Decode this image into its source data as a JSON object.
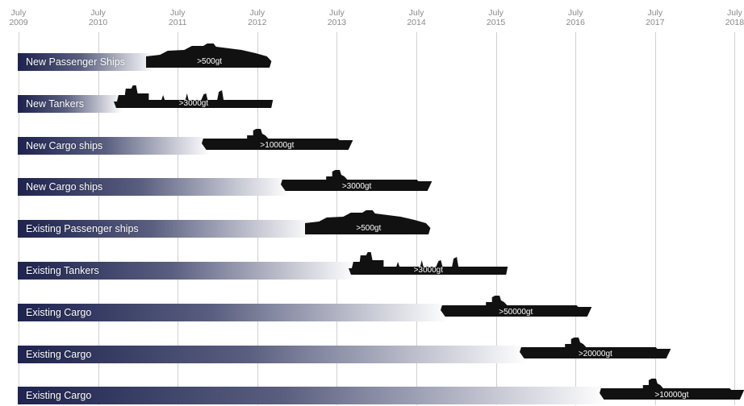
{
  "years": [
    {
      "month": "July",
      "year": "2009"
    },
    {
      "month": "July",
      "year": "2010"
    },
    {
      "month": "July",
      "year": "2011"
    },
    {
      "month": "July",
      "year": "2012"
    },
    {
      "month": "July",
      "year": "2013"
    },
    {
      "month": "July",
      "year": "2014"
    },
    {
      "month": "July",
      "year": "2015"
    },
    {
      "month": "July",
      "year": "2016"
    },
    {
      "month": "July",
      "year": "2017"
    },
    {
      "month": "July",
      "year": "2018"
    }
  ],
  "rows": [
    {
      "label": "New Passenger Ships",
      "ship": "passenger",
      "tonnage": ">500gt",
      "ship_start": 2010.6,
      "ship_end": 2012.2
    },
    {
      "label": "New Tankers",
      "ship": "tanker",
      "tonnage": ">3000gt",
      "ship_start": 2010.2,
      "ship_end": 2012.2
    },
    {
      "label": "New Cargo ships",
      "ship": "cargo",
      "tonnage": ">10000gt",
      "ship_start": 2011.3,
      "ship_end": 2013.2
    },
    {
      "label": "New Cargo ships",
      "ship": "cargo",
      "tonnage": ">3000gt",
      "ship_start": 2012.3,
      "ship_end": 2014.2
    },
    {
      "label": "Existing Passenger ships",
      "ship": "passenger",
      "tonnage": ">500gt",
      "ship_start": 2012.6,
      "ship_end": 2014.2
    },
    {
      "label": "Existing Tankers",
      "ship": "tanker",
      "tonnage": ">3000gt",
      "ship_start": 2013.15,
      "ship_end": 2015.15
    },
    {
      "label": "Existing Cargo",
      "ship": "cargo",
      "tonnage": ">50000gt",
      "ship_start": 2014.3,
      "ship_end": 2016.2
    },
    {
      "label": "Existing Cargo",
      "ship": "cargo",
      "tonnage": ">20000gt",
      "ship_start": 2015.3,
      "ship_end": 2017.2
    },
    {
      "label": "Existing Cargo",
      "ship": "cargo",
      "tonnage": ">10000gt",
      "ship_start": 2016.3,
      "ship_end": 2018.2
    }
  ],
  "colors": {
    "bar_dark": "#1f2450",
    "bar_light": "#ffffff",
    "ship": "#111111",
    "grid": "#d0d0d0"
  }
}
